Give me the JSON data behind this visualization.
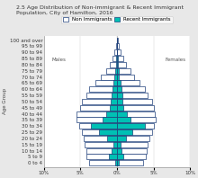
{
  "title": "2.5 Age Distribution of Non-immigrant & Recent Immigrant Population, City of Hamilton, 2016",
  "age_groups": [
    "0 to 4",
    "5 to 9",
    "10 to 14",
    "15 to 19",
    "20 to 24",
    "25 to 29",
    "30 to 34",
    "35 to 39",
    "40 to 44",
    "45 to 49",
    "50 to 54",
    "55 to 59",
    "60 to 64",
    "65 to 69",
    "70 to 74",
    "75 to 79",
    "80 to 84",
    "85 to 89",
    "90 to 94",
    "95 to 99",
    "100 and over"
  ],
  "male_nonimm": [
    3.8,
    4.2,
    4.2,
    4.4,
    4.5,
    4.8,
    5.2,
    5.5,
    5.5,
    5.0,
    4.8,
    4.2,
    3.8,
    3.0,
    2.2,
    1.5,
    1.0,
    0.6,
    0.3,
    0.1,
    0.05
  ],
  "male_recimm": [
    0.25,
    1.1,
    0.75,
    0.45,
    1.4,
    2.4,
    3.5,
    2.0,
    1.5,
    1.0,
    0.8,
    0.7,
    0.6,
    0.5,
    0.3,
    0.2,
    0.15,
    0.1,
    0.05,
    0.0,
    0.0
  ],
  "female_nonimm": [
    3.6,
    4.0,
    4.1,
    4.2,
    4.4,
    4.8,
    5.0,
    5.3,
    5.2,
    5.0,
    4.8,
    4.2,
    3.8,
    3.1,
    2.4,
    1.8,
    1.3,
    0.9,
    0.5,
    0.2,
    0.1
  ],
  "female_recimm": [
    0.25,
    0.9,
    0.65,
    0.45,
    1.3,
    2.1,
    3.8,
    1.8,
    1.4,
    0.9,
    0.8,
    0.7,
    0.6,
    0.5,
    0.3,
    0.2,
    0.15,
    0.1,
    0.05,
    0.0,
    0.0
  ],
  "nonimm_color": "#ffffff",
  "nonimm_edge": "#1e3f7a",
  "recimm_color": "#00c0b4",
  "recimm_edge": "#1e3f7a",
  "ylabel": "Age Group",
  "males_label": "Males",
  "females_label": "Females",
  "legend_nonimm": "Non Immigrants",
  "legend_recimm": "Recent Immigrants",
  "xlim": 10.0,
  "plot_bg": "#ffffff",
  "fig_bg": "#e8e8e8",
  "title_fontsize": 4.5,
  "tick_fontsize": 4.0,
  "label_fontsize": 4.0,
  "legend_fontsize": 4.0
}
